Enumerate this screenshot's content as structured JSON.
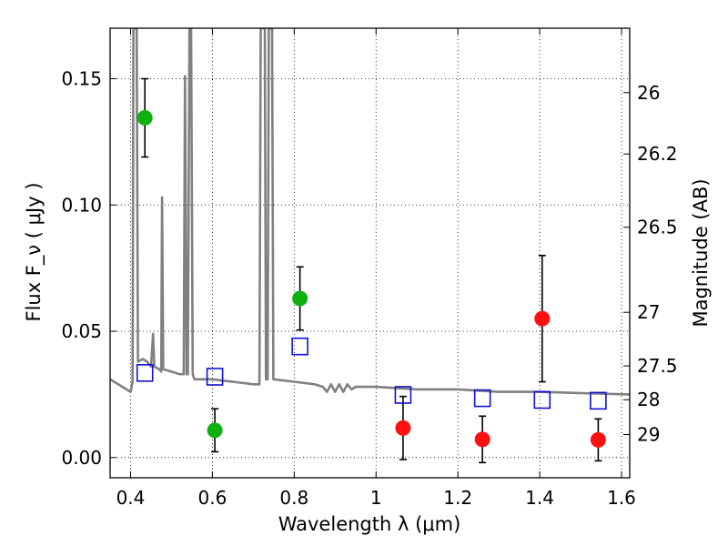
{
  "chart_data": {
    "type": "scatter",
    "x_label": "Wavelength  λ (μm)",
    "y_label": "Flux  F_ν  ( μJy )",
    "y2_label": "Magnitude (AB)",
    "xlim": [
      0.35,
      1.62
    ],
    "ylim": [
      -0.008,
      0.17
    ],
    "x_ticks": [
      0.4,
      0.6,
      0.8,
      1.0,
      1.2,
      1.4,
      1.6
    ],
    "x_tick_labels": [
      "0.4",
      "0.6",
      "0.8",
      "1",
      "1.2",
      "1.4",
      "1.6"
    ],
    "y_ticks": [
      0.0,
      0.05,
      0.1,
      0.15
    ],
    "y_tick_labels": [
      "0.00",
      "0.05",
      "0.10",
      "0.15"
    ],
    "mag_ticks": [
      {
        "label": "26",
        "flux": 0.1445
      },
      {
        "label": "26.2",
        "flux": 0.1202
      },
      {
        "label": "26.5",
        "flux": 0.0912
      },
      {
        "label": "27",
        "flux": 0.0575
      },
      {
        "label": "27.5",
        "flux": 0.0363
      },
      {
        "label": "28",
        "flux": 0.0229
      },
      {
        "label": "29",
        "flux": 0.0091
      }
    ],
    "grid": true,
    "model_color": "#808080",
    "series": [
      {
        "marker": "circle",
        "color": "#10b010",
        "points": [
          {
            "x": 0.435,
            "y": 0.1345,
            "err": 0.0155
          },
          {
            "x": 0.606,
            "y": 0.0108,
            "err": 0.0085
          },
          {
            "x": 0.814,
            "y": 0.063,
            "err": 0.0125
          }
        ]
      },
      {
        "marker": "circle",
        "color": "#ff1010",
        "points": [
          {
            "x": 1.066,
            "y": 0.0117,
            "err": 0.0125
          },
          {
            "x": 1.26,
            "y": 0.0072,
            "err": 0.0092
          },
          {
            "x": 1.406,
            "y": 0.055,
            "err": 0.025
          },
          {
            "x": 1.543,
            "y": 0.007,
            "err": 0.0083
          }
        ]
      },
      {
        "marker": "open-square",
        "color": "#1010d0",
        "points": [
          {
            "x": 0.435,
            "y": 0.0335
          },
          {
            "x": 0.606,
            "y": 0.032
          },
          {
            "x": 0.814,
            "y": 0.044
          },
          {
            "x": 1.066,
            "y": 0.0248
          },
          {
            "x": 1.26,
            "y": 0.0235
          },
          {
            "x": 1.406,
            "y": 0.0228
          },
          {
            "x": 1.543,
            "y": 0.0225
          }
        ]
      }
    ],
    "model_spectrum": [
      [
        0.35,
        0.031
      ],
      [
        0.38,
        0.028
      ],
      [
        0.4,
        0.026
      ],
      [
        0.405,
        0.03
      ],
      [
        0.407,
        0.17
      ],
      [
        0.415,
        0.17
      ],
      [
        0.418,
        0.038
      ],
      [
        0.43,
        0.039
      ],
      [
        0.44,
        0.038
      ],
      [
        0.45,
        0.036
      ],
      [
        0.455,
        0.049
      ],
      [
        0.458,
        0.036
      ],
      [
        0.47,
        0.035
      ],
      [
        0.475,
        0.034
      ],
      [
        0.477,
        0.103
      ],
      [
        0.48,
        0.035
      ],
      [
        0.5,
        0.034
      ],
      [
        0.52,
        0.033
      ],
      [
        0.53,
        0.033
      ],
      [
        0.533,
        0.151
      ],
      [
        0.537,
        0.033
      ],
      [
        0.54,
        0.033
      ],
      [
        0.544,
        0.17
      ],
      [
        0.548,
        0.17
      ],
      [
        0.552,
        0.033
      ],
      [
        0.556,
        0.031
      ],
      [
        0.6,
        0.031
      ],
      [
        0.65,
        0.03
      ],
      [
        0.7,
        0.029
      ],
      [
        0.715,
        0.029
      ],
      [
        0.718,
        0.17
      ],
      [
        0.728,
        0.17
      ],
      [
        0.731,
        0.031
      ],
      [
        0.735,
        0.031
      ],
      [
        0.738,
        0.17
      ],
      [
        0.746,
        0.17
      ],
      [
        0.749,
        0.031
      ],
      [
        0.8,
        0.03
      ],
      [
        0.85,
        0.029
      ],
      [
        0.87,
        0.028
      ],
      [
        0.88,
        0.026
      ],
      [
        0.89,
        0.029
      ],
      [
        0.9,
        0.026
      ],
      [
        0.91,
        0.029
      ],
      [
        0.92,
        0.026
      ],
      [
        0.93,
        0.029
      ],
      [
        0.94,
        0.027
      ],
      [
        0.95,
        0.028
      ],
      [
        1.0,
        0.028
      ],
      [
        1.1,
        0.027
      ],
      [
        1.2,
        0.027
      ],
      [
        1.3,
        0.026
      ],
      [
        1.4,
        0.026
      ],
      [
        1.5,
        0.0255
      ],
      [
        1.62,
        0.025
      ]
    ]
  }
}
